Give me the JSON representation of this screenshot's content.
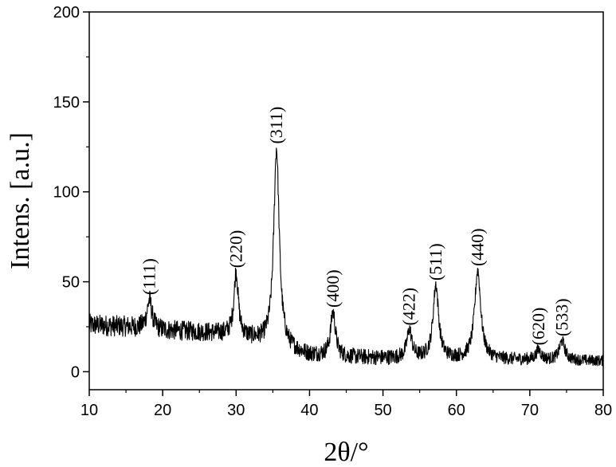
{
  "chart_data": {
    "type": "line",
    "title": "",
    "xlabel": "2θ/°",
    "ylabel": "Intens. [a.u.]",
    "xlim": [
      10,
      80
    ],
    "ylim": [
      -10,
      200
    ],
    "xticks": [
      10,
      20,
      30,
      40,
      50,
      60,
      70,
      80
    ],
    "yticks": [
      0,
      50,
      100,
      150,
      200
    ],
    "grid": false,
    "legend": "none",
    "line_color": "#000000",
    "baseline": [
      [
        10,
        26
      ],
      [
        15,
        25
      ],
      [
        20,
        23
      ],
      [
        25,
        22
      ],
      [
        28,
        21
      ],
      [
        30,
        20
      ],
      [
        33,
        17
      ],
      [
        35,
        14
      ],
      [
        38,
        11
      ],
      [
        40,
        9
      ],
      [
        45,
        8
      ],
      [
        50,
        7.5
      ],
      [
        60,
        7
      ],
      [
        70,
        6.5
      ],
      [
        80,
        6
      ]
    ],
    "peaks": [
      {
        "label": "(111)",
        "x": 18.2,
        "y": 40,
        "width": 0.4
      },
      {
        "label": "(220)",
        "x": 30.0,
        "y": 55,
        "width": 0.35
      },
      {
        "label": "(311)",
        "x": 35.5,
        "y": 124,
        "width": 0.45
      },
      {
        "label": "(400)",
        "x": 43.2,
        "y": 33,
        "width": 0.4
      },
      {
        "label": "(422)",
        "x": 53.6,
        "y": 23,
        "width": 0.4
      },
      {
        "label": "(511)",
        "x": 57.2,
        "y": 48,
        "width": 0.45
      },
      {
        "label": "(440)",
        "x": 62.9,
        "y": 56,
        "width": 0.5
      },
      {
        "label": "(620)",
        "x": 71.2,
        "y": 12,
        "width": 0.4
      },
      {
        "label": "(533)",
        "x": 74.4,
        "y": 17,
        "width": 0.45
      }
    ],
    "noise_amplitude_left": 6,
    "noise_amplitude_right": 3
  }
}
